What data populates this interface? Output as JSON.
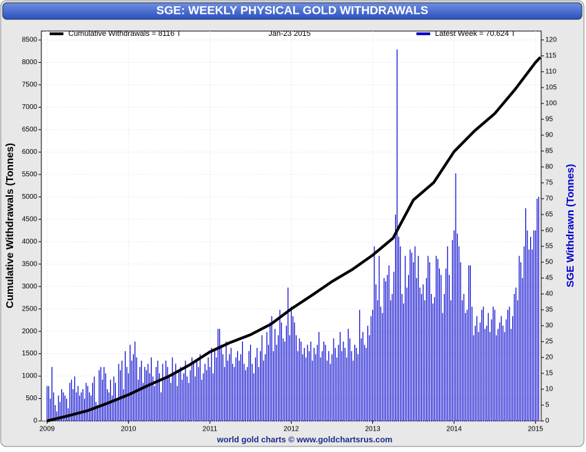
{
  "chart_data": {
    "type": "combo",
    "title": "SGE: WEEKLY PHYSICAL GOLD WITHDRAWALS",
    "footer": "world gold charts © www.goldchartsrus.com",
    "ylabel": "Cumulative Withdrawals (Tonnes)",
    "y2label": "SGE Withdrawn (Tonnes)",
    "legend_date": "Jan-23  2015",
    "xlim": [
      2008.93,
      2015.07
    ],
    "xticks": [
      2009,
      2010,
      2011,
      2012,
      2013,
      2014,
      2015
    ],
    "ylim": [
      0,
      8700
    ],
    "yticks": [
      0,
      500,
      1000,
      1500,
      2000,
      2500,
      3000,
      3500,
      4000,
      4500,
      5000,
      5500,
      6000,
      6500,
      7000,
      7500,
      8000,
      8500
    ],
    "y2lim": [
      0,
      122.8
    ],
    "y2ticks": [
      0,
      5,
      10,
      15,
      20,
      25,
      30,
      35,
      40,
      45,
      50,
      55,
      60,
      65,
      70,
      75,
      80,
      85,
      90,
      95,
      100,
      105,
      110,
      115,
      120
    ],
    "grid": true,
    "series": [
      {
        "name": "Cumulative Withdrawals = 8116 T",
        "type": "line",
        "color": "#000000",
        "x": [
          2009,
          2009.25,
          2009.5,
          2009.75,
          2010,
          2010.25,
          2010.5,
          2010.75,
          2011,
          2011.25,
          2011.5,
          2011.75,
          2012,
          2012.25,
          2012.5,
          2012.75,
          2013,
          2013.25,
          2013.5,
          2013.75,
          2014,
          2014.25,
          2014.5,
          2014.75,
          2015,
          2015.06
        ],
        "values": [
          0,
          110,
          230,
          400,
          585,
          800,
          1000,
          1250,
          1540,
          1750,
          1925,
          2160,
          2500,
          2800,
          3110,
          3380,
          3700,
          4080,
          4930,
          5320,
          6010,
          6470,
          6860,
          7400,
          8000,
          8116
        ]
      },
      {
        "name": "Latest Week = 70.624 T",
        "type": "bar",
        "axis": "y2",
        "color": "#0000cc",
        "x": [
          2009,
          2009.02,
          2009.04,
          2009.06,
          2009.08,
          2009.1,
          2009.12,
          2009.14,
          2009.16,
          2009.18,
          2009.2,
          2009.22,
          2009.24,
          2009.26,
          2009.28,
          2009.3,
          2009.32,
          2009.34,
          2009.36,
          2009.38,
          2009.4,
          2009.42,
          2009.44,
          2009.46,
          2009.48,
          2009.5,
          2009.52,
          2009.54,
          2009.56,
          2009.58,
          2009.6,
          2009.62,
          2009.64,
          2009.66,
          2009.68,
          2009.7,
          2009.72,
          2009.74,
          2009.76,
          2009.78,
          2009.8,
          2009.82,
          2009.84,
          2009.86,
          2009.88,
          2009.9,
          2009.92,
          2009.94,
          2009.96,
          2009.98,
          2010,
          2010.02,
          2010.04,
          2010.06,
          2010.08,
          2010.1,
          2010.12,
          2010.14,
          2010.16,
          2010.18,
          2010.2,
          2010.22,
          2010.24,
          2010.26,
          2010.28,
          2010.3,
          2010.32,
          2010.34,
          2010.36,
          2010.38,
          2010.4,
          2010.42,
          2010.44,
          2010.46,
          2010.48,
          2010.5,
          2010.52,
          2010.54,
          2010.56,
          2010.58,
          2010.6,
          2010.62,
          2010.64,
          2010.66,
          2010.68,
          2010.7,
          2010.72,
          2010.74,
          2010.76,
          2010.78,
          2010.8,
          2010.82,
          2010.84,
          2010.86,
          2010.88,
          2010.9,
          2010.92,
          2010.94,
          2010.96,
          2010.98,
          2011,
          2011.02,
          2011.04,
          2011.06,
          2011.08,
          2011.1,
          2011.12,
          2011.14,
          2011.16,
          2011.18,
          2011.2,
          2011.22,
          2011.24,
          2011.26,
          2011.28,
          2011.3,
          2011.32,
          2011.34,
          2011.36,
          2011.38,
          2011.4,
          2011.42,
          2011.44,
          2011.46,
          2011.48,
          2011.5,
          2011.52,
          2011.54,
          2011.56,
          2011.58,
          2011.6,
          2011.62,
          2011.64,
          2011.66,
          2011.68,
          2011.7,
          2011.72,
          2011.74,
          2011.76,
          2011.78,
          2011.8,
          2011.82,
          2011.84,
          2011.86,
          2011.88,
          2011.9,
          2011.92,
          2011.94,
          2011.96,
          2011.98,
          2012,
          2012.02,
          2012.04,
          2012.06,
          2012.08,
          2012.1,
          2012.12,
          2012.14,
          2012.16,
          2012.18,
          2012.2,
          2012.22,
          2012.24,
          2012.26,
          2012.28,
          2012.3,
          2012.32,
          2012.34,
          2012.36,
          2012.38,
          2012.4,
          2012.42,
          2012.44,
          2012.46,
          2012.48,
          2012.5,
          2012.52,
          2012.54,
          2012.56,
          2012.58,
          2012.6,
          2012.62,
          2012.64,
          2012.66,
          2012.68,
          2012.7,
          2012.72,
          2012.74,
          2012.76,
          2012.78,
          2012.8,
          2012.82,
          2012.84,
          2012.86,
          2012.88,
          2012.9,
          2012.92,
          2012.94,
          2012.96,
          2012.98,
          2013,
          2013.02,
          2013.04,
          2013.06,
          2013.08,
          2013.1,
          2013.12,
          2013.14,
          2013.16,
          2013.18,
          2013.2,
          2013.22,
          2013.24,
          2013.26,
          2013.28,
          2013.3,
          2013.32,
          2013.34,
          2013.36,
          2013.38,
          2013.4,
          2013.42,
          2013.44,
          2013.46,
          2013.48,
          2013.5,
          2013.52,
          2013.54,
          2013.56,
          2013.58,
          2013.6,
          2013.62,
          2013.64,
          2013.66,
          2013.68,
          2013.7,
          2013.72,
          2013.74,
          2013.76,
          2013.78,
          2013.8,
          2013.82,
          2013.84,
          2013.86,
          2013.88,
          2013.9,
          2013.92,
          2013.94,
          2013.96,
          2013.98,
          2014,
          2014.02,
          2014.04,
          2014.06,
          2014.08,
          2014.1,
          2014.12,
          2014.14,
          2014.16,
          2014.18,
          2014.2,
          2014.22,
          2014.24,
          2014.26,
          2014.28,
          2014.3,
          2014.32,
          2014.34,
          2014.36,
          2014.38,
          2014.4,
          2014.42,
          2014.44,
          2014.46,
          2014.48,
          2014.5,
          2014.52,
          2014.54,
          2014.56,
          2014.58,
          2014.6,
          2014.62,
          2014.64,
          2014.66,
          2014.68,
          2014.7,
          2014.72,
          2014.74,
          2014.76,
          2014.78,
          2014.8,
          2014.82,
          2014.84,
          2014.86,
          2014.88,
          2014.9,
          2014.92,
          2014.94,
          2014.96,
          2014.98,
          2015,
          2015.02,
          2015.04
        ],
        "values": [
          11,
          11,
          7,
          17,
          9,
          5,
          3,
          8,
          6,
          10,
          9,
          8,
          7,
          4,
          12,
          13,
          10,
          14,
          9,
          11,
          8,
          9,
          10,
          7,
          12,
          11,
          9,
          8,
          12,
          14,
          6,
          5,
          16,
          17,
          13,
          17,
          15,
          10,
          9,
          13,
          8,
          14,
          12,
          7,
          18,
          16,
          19,
          10,
          22,
          17,
          15,
          24,
          19,
          21,
          25,
          20,
          13,
          17,
          19,
          12,
          17,
          16,
          18,
          15,
          20,
          14,
          11,
          17,
          19,
          15,
          9,
          18,
          13,
          19,
          17,
          14,
          12,
          20,
          15,
          18,
          11,
          16,
          17,
          13,
          15,
          19,
          14,
          12,
          16,
          20,
          18,
          14,
          19,
          17,
          21,
          13,
          15,
          18,
          16,
          20,
          17,
          23,
          15,
          22,
          20,
          29,
          29,
          24,
          21,
          17,
          25,
          19,
          21,
          23,
          18,
          17,
          20,
          22,
          19,
          21,
          25,
          18,
          16,
          17,
          22,
          24,
          18,
          15,
          20,
          23,
          17,
          22,
          27,
          19,
          21,
          28,
          24,
          31,
          33,
          22,
          29,
          24,
          27,
          35,
          31,
          26,
          25,
          30,
          42,
          27,
          36,
          33,
          31,
          27,
          22,
          26,
          25,
          21,
          23,
          20,
          24,
          22,
          25,
          19,
          23,
          21,
          24,
          28,
          20,
          22,
          25,
          24,
          19,
          22,
          18,
          21,
          26,
          23,
          20,
          24,
          28,
          22,
          25,
          23,
          20,
          29,
          26,
          22,
          19,
          24,
          23,
          21,
          35,
          26,
          28,
          24,
          23,
          30,
          27,
          33,
          35,
          55,
          43,
          38,
          52,
          36,
          34,
          45,
          44,
          46,
          49,
          38,
          40,
          47,
          65,
          117,
          58,
          55,
          40,
          37,
          52,
          42,
          46,
          54,
          53,
          50,
          55,
          45,
          52,
          42,
          40,
          43,
          38,
          45,
          52,
          50,
          40,
          37,
          39,
          52,
          51,
          48,
          46,
          34,
          40,
          48,
          55,
          46,
          38,
          57,
          60,
          78,
          59,
          55,
          50,
          38,
          40,
          34,
          35,
          49,
          49,
          36,
          27,
          30,
          33,
          28,
          31,
          35,
          36,
          29,
          30,
          34,
          28,
          32,
          36,
          35,
          27,
          29,
          31,
          33,
          30,
          28,
          32,
          35,
          36,
          29,
          33,
          40,
          42,
          38,
          52,
          50,
          45,
          55,
          67,
          60,
          54,
          58,
          54,
          60,
          60,
          70,
          70.624
        ]
      }
    ]
  }
}
